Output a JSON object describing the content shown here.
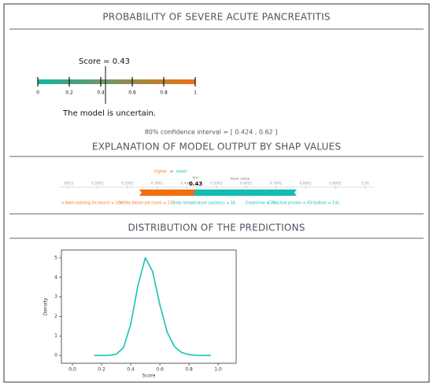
{
  "header": {
    "title": "PROBABILITY OF SEVERE ACUTE PANCREATITIS"
  },
  "gauge": {
    "type": "gauge",
    "title": "Score = 0.43",
    "value": 0.43,
    "xlim": [
      0,
      1
    ],
    "xticks": [
      0,
      0.2,
      0.4,
      0.6,
      0.8,
      1
    ],
    "colors": [
      "#12b3a3",
      "#f0700f"
    ]
  },
  "verdict": "The model is uncertain.",
  "confidence_interval": "80% confidence interval = [ 0.424 , 0.62 ]",
  "shap": {
    "type": "force",
    "title": "EXPLANATION OF MODEL OUTPUT BY SHAP VALUES",
    "legend_higher": "higher",
    "legend_lower": "lower",
    "fx_label": "f(x)",
    "fx": 0.43,
    "base_value_label": "base value",
    "xlim": [
      -0.03,
      1.03
    ],
    "xticks": [
      {
        "value": 0.0012,
        "label": ".0012"
      },
      {
        "value": 0.1001,
        "label": "0.1001"
      },
      {
        "value": 0.2001,
        "label": "0.2001"
      },
      {
        "value": 0.3001,
        "label": "0.3001"
      },
      {
        "value": 0.4001,
        "label": "0.4001"
      },
      {
        "value": 0.5001,
        "label": "0.5001"
      },
      {
        "value": 0.6001,
        "label": "0.6001"
      },
      {
        "value": 0.7001,
        "label": "0.7001"
      },
      {
        "value": 0.8001,
        "label": "0.8001"
      },
      {
        "value": 0.9001,
        "label": "0.9001"
      },
      {
        "value": 1.0,
        "label": "1.00"
      }
    ],
    "higher_color": "#f0700f",
    "lower_color": "#13bdb0",
    "features": [
      {
        "name": "n been existing (in hours) = 20",
        "value": 0.12,
        "direction": "higher"
      },
      {
        "name": "White blood cell count = 23",
        "value": 0.07,
        "direction": "higher"
      },
      {
        "name": "Body temperature (axillary) = 36",
        "value": 0.17,
        "direction": "lower"
      },
      {
        "name": "Creatinine = 70",
        "value": 0.07,
        "direction": "lower"
      },
      {
        "name": "C-reactive protein = 83",
        "value": 0.04,
        "direction": "lower"
      },
      {
        "name": "Sodium = 141",
        "value": 0.06,
        "direction": "lower"
      }
    ]
  },
  "distribution": {
    "type": "line",
    "title": "DISTRIBUTION OF THE PREDICTIONS",
    "xlabel": "Score",
    "ylabel": "Density",
    "x": [
      0.15,
      0.2,
      0.25,
      0.3,
      0.35,
      0.4,
      0.45,
      0.5,
      0.55,
      0.6,
      0.65,
      0.7,
      0.75,
      0.8,
      0.85,
      0.9,
      0.95
    ],
    "values": [
      0,
      0,
      0.01,
      0.06,
      0.4,
      1.6,
      3.6,
      5.0,
      4.3,
      2.6,
      1.2,
      0.45,
      0.15,
      0.04,
      0.01,
      0,
      0
    ],
    "xlim": [
      -0.076,
      1.124
    ],
    "ylim": [
      -0.4,
      5.4
    ],
    "xticks": [
      {
        "value": 0,
        "label": "0.0"
      },
      {
        "value": 0.2,
        "label": "0.2"
      },
      {
        "value": 0.4,
        "label": "0.4"
      },
      {
        "value": 0.6,
        "label": "0.6"
      },
      {
        "value": 0.8,
        "label": "0.8"
      },
      {
        "value": 1,
        "label": "1.0"
      }
    ],
    "yticks": [
      0,
      1,
      2,
      3,
      4,
      5
    ],
    "color": "#17c3b2"
  }
}
